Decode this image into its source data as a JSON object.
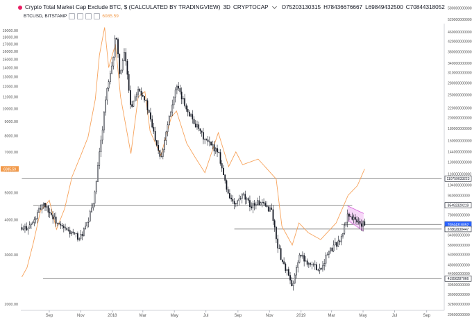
{
  "header": {
    "title": "Crypto Total Market Cap Exclude BTC, $ (CALCULATED BY TRADINGVIEW)",
    "interval": "3D",
    "symbol": "CRYPTOCAP",
    "open": "O75203130315",
    "high": "H78436676667",
    "low": "L69849432500",
    "close": "C70844318052",
    "overlay_symbol": "BTCUSD, BITSTAMP",
    "overlay_value": "6085.59"
  },
  "colors": {
    "candle": "#131722",
    "btc_line": "#f7a35c",
    "level_line": "#6b6b6b",
    "flag_fill": "#f3c6f5",
    "flag_stroke": "#d35fd8",
    "axis_text": "#555555",
    "btc_price_tag": "#f29b4c",
    "current_price_tag": "#2962ff",
    "label_tag_border": "#131722"
  },
  "chart_data": {
    "type": "line",
    "title": "Crypto Total Market Cap Exclude BTC, $ (CALCULATED BY TRADINGVIEW)",
    "right_axis": {
      "scale": "log",
      "ticks": [
        "580000000000",
        "520000000000",
        "460000000000",
        "420000000000",
        "380000000000",
        "340000000000",
        "310000000000",
        "280000000000",
        "250000000000",
        "220000000000",
        "200000000000",
        "180000000000",
        "160000000000",
        "144000000000",
        "130000000000",
        "116000000000",
        "104000000000",
        "94000000000",
        "78000000000",
        "64000000000",
        "58000000000",
        "53000000000",
        "48000000000",
        "44000000000",
        "39500000000",
        "36000000000",
        "32800000000",
        "29600000000"
      ],
      "tick_values": [
        580000000000.0,
        520000000000.0,
        460000000000.0,
        420000000000.0,
        380000000000.0,
        340000000000.0,
        310000000000.0,
        280000000000.0,
        250000000000.0,
        220000000000.0,
        200000000000.0,
        180000000000.0,
        160000000000.0,
        144000000000.0,
        130000000000.0,
        116000000000.0,
        104000000000.0,
        94000000000.0,
        78000000000.0,
        64000000000.0,
        58000000000.0,
        53000000000.0,
        48000000000.0,
        44000000000.0,
        39500000000.0,
        36000000000.0,
        32800000000.0,
        29600000000.0
      ],
      "labels": [
        {
          "text": "110759033223",
          "value": 110759033223,
          "style": "outline"
        },
        {
          "text": "85492320219",
          "value": 85492320219,
          "style": "outline"
        },
        {
          "text": "70995315347",
          "value": 70995315347,
          "style": "outline"
        },
        {
          "text": "70844318052",
          "value": 70844318052,
          "style": "current"
        },
        {
          "text": "67862930447",
          "value": 67862930447,
          "style": "outline"
        },
        {
          "text": "41956287066",
          "value": 41956287066,
          "style": "outline"
        }
      ]
    },
    "left_axis": {
      "scale": "log",
      "ticks": [
        "19000.00",
        "18000.00",
        "17000.00",
        "16000.00",
        "15000.00",
        "14000.00",
        "13000.00",
        "12000.00",
        "11000.00",
        "10000.00",
        "9000.00",
        "8000.00",
        "7000.00",
        "6000.00",
        "5000.00",
        "4000.00",
        "3000.00",
        "2000.00"
      ],
      "tick_values": [
        19000,
        18000,
        17000,
        16000,
        15000,
        14000,
        13000,
        12000,
        11000,
        10000,
        9000,
        8000,
        7000,
        6000,
        5000,
        4000,
        3000,
        2000
      ],
      "price_tag": {
        "text": "6085.59",
        "value": 6085.59
      }
    },
    "x_axis": {
      "ticks": [
        "Sep",
        "Nov",
        "2018",
        "Mar",
        "May",
        "Jul",
        "Sep",
        "Nov",
        "2019",
        "Mar",
        "May",
        "Jul",
        "Sep"
      ],
      "tick_dates": [
        "2017-09-01",
        "2017-11-01",
        "2018-01-01",
        "2018-03-01",
        "2018-05-01",
        "2018-07-01",
        "2018-09-01",
        "2018-11-01",
        "2019-01-01",
        "2019-03-01",
        "2019-05-01",
        "2019-07-01",
        "2019-09-01"
      ]
    },
    "horizontal_levels": [
      {
        "value": 110759033223,
        "from": "2017-07-10",
        "to": "2019-09-30"
      },
      {
        "value": 85492320219,
        "from": "2017-08-01",
        "to": "2019-04-10"
      },
      {
        "value": 70995315347,
        "from": "2019-03-20",
        "to": "2019-09-30"
      },
      {
        "value": 67862930447,
        "from": "2018-08-25",
        "to": "2019-09-30"
      },
      {
        "value": 41956287066,
        "from": "2017-08-20",
        "to": "2019-09-30"
      }
    ],
    "flag_pattern": {
      "upper": [
        [
          "2019-04-01",
          85000000000
        ],
        [
          "2019-05-02",
          79000000000
        ]
      ],
      "lower": [
        [
          "2019-04-01",
          74000000000
        ],
        [
          "2019-05-02",
          66500000000
        ]
      ]
    },
    "series": [
      {
        "name": "CRYPTOCAP",
        "kind": "candles_3d",
        "approx_closes": [
          [
            "2017-07-10",
            67000000000
          ],
          [
            "2017-08-01",
            72000000000
          ],
          [
            "2017-08-20",
            88000000000
          ],
          [
            "2017-09-05",
            78000000000
          ],
          [
            "2017-09-20",
            70000000000
          ],
          [
            "2017-10-10",
            66000000000
          ],
          [
            "2017-10-30",
            62000000000
          ],
          [
            "2017-11-15",
            72000000000
          ],
          [
            "2017-11-28",
            95000000000
          ],
          [
            "2017-12-10",
            160000000000
          ],
          [
            "2017-12-20",
            250000000000
          ],
          [
            "2018-01-01",
            330000000000
          ],
          [
            "2018-01-07",
            460000000000
          ],
          [
            "2018-01-16",
            300000000000
          ],
          [
            "2018-01-25",
            380000000000
          ],
          [
            "2018-02-06",
            220000000000
          ],
          [
            "2018-02-20",
            270000000000
          ],
          [
            "2018-03-05",
            240000000000
          ],
          [
            "2018-03-20",
            180000000000
          ],
          [
            "2018-04-05",
            135000000000
          ],
          [
            "2018-04-20",
            200000000000
          ],
          [
            "2018-05-05",
            270000000000
          ],
          [
            "2018-05-20",
            230000000000
          ],
          [
            "2018-06-01",
            205000000000
          ],
          [
            "2018-06-15",
            180000000000
          ],
          [
            "2018-06-30",
            160000000000
          ],
          [
            "2018-07-15",
            150000000000
          ],
          [
            "2018-07-25",
            145000000000
          ],
          [
            "2018-08-10",
            100000000000
          ],
          [
            "2018-08-25",
            85000000000
          ],
          [
            "2018-09-10",
            94000000000
          ],
          [
            "2018-09-25",
            85000000000
          ],
          [
            "2018-10-10",
            88000000000
          ],
          [
            "2018-10-25",
            84000000000
          ],
          [
            "2018-11-05",
            82000000000
          ],
          [
            "2018-11-15",
            60000000000
          ],
          [
            "2018-11-25",
            50000000000
          ],
          [
            "2018-12-07",
            44000000000
          ],
          [
            "2018-12-15",
            37500000000
          ],
          [
            "2018-12-28",
            53000000000
          ],
          [
            "2019-01-10",
            50000000000
          ],
          [
            "2019-01-25",
            47500000000
          ],
          [
            "2019-02-08",
            46000000000
          ],
          [
            "2019-02-20",
            53000000000
          ],
          [
            "2019-03-05",
            57000000000
          ],
          [
            "2019-03-20",
            62000000000
          ],
          [
            "2019-04-02",
            79000000000
          ],
          [
            "2019-04-15",
            74000000000
          ],
          [
            "2019-04-28",
            71000000000
          ],
          [
            "2019-05-04",
            70844318052
          ]
        ]
      },
      {
        "name": "BTCUSD, BITSTAMP",
        "kind": "line",
        "points": [
          [
            "2017-07-10",
            2500
          ],
          [
            "2017-07-20",
            2700
          ],
          [
            "2017-08-01",
            3300
          ],
          [
            "2017-08-15",
            4300
          ],
          [
            "2017-09-01",
            4700
          ],
          [
            "2017-09-15",
            3700
          ],
          [
            "2017-10-01",
            4400
          ],
          [
            "2017-10-15",
            5700
          ],
          [
            "2017-11-01",
            6800
          ],
          [
            "2017-11-15",
            7900
          ],
          [
            "2017-11-29",
            10800
          ],
          [
            "2017-12-07",
            15500
          ],
          [
            "2017-12-17",
            19500
          ],
          [
            "2017-12-25",
            14000
          ],
          [
            "2018-01-07",
            17000
          ],
          [
            "2018-01-17",
            11000
          ],
          [
            "2018-02-06",
            6900
          ],
          [
            "2018-02-20",
            11000
          ],
          [
            "2018-03-05",
            11500
          ],
          [
            "2018-03-15",
            8300
          ],
          [
            "2018-04-05",
            6800
          ],
          [
            "2018-04-25",
            9300
          ],
          [
            "2018-05-05",
            9800
          ],
          [
            "2018-05-25",
            7500
          ],
          [
            "2018-06-10",
            6700
          ],
          [
            "2018-06-29",
            5900
          ],
          [
            "2018-07-25",
            8200
          ],
          [
            "2018-08-14",
            6200
          ],
          [
            "2018-08-28",
            7000
          ],
          [
            "2018-09-10",
            6300
          ],
          [
            "2018-10-10",
            6600
          ],
          [
            "2018-11-14",
            5600
          ],
          [
            "2018-11-25",
            3800
          ],
          [
            "2018-12-15",
            3250
          ],
          [
            "2018-12-28",
            3900
          ],
          [
            "2019-01-15",
            3600
          ],
          [
            "2019-02-08",
            3400
          ],
          [
            "2019-03-10",
            3900
          ],
          [
            "2019-04-02",
            4900
          ],
          [
            "2019-04-20",
            5300
          ],
          [
            "2019-05-04",
            6085.59
          ]
        ]
      }
    ]
  }
}
